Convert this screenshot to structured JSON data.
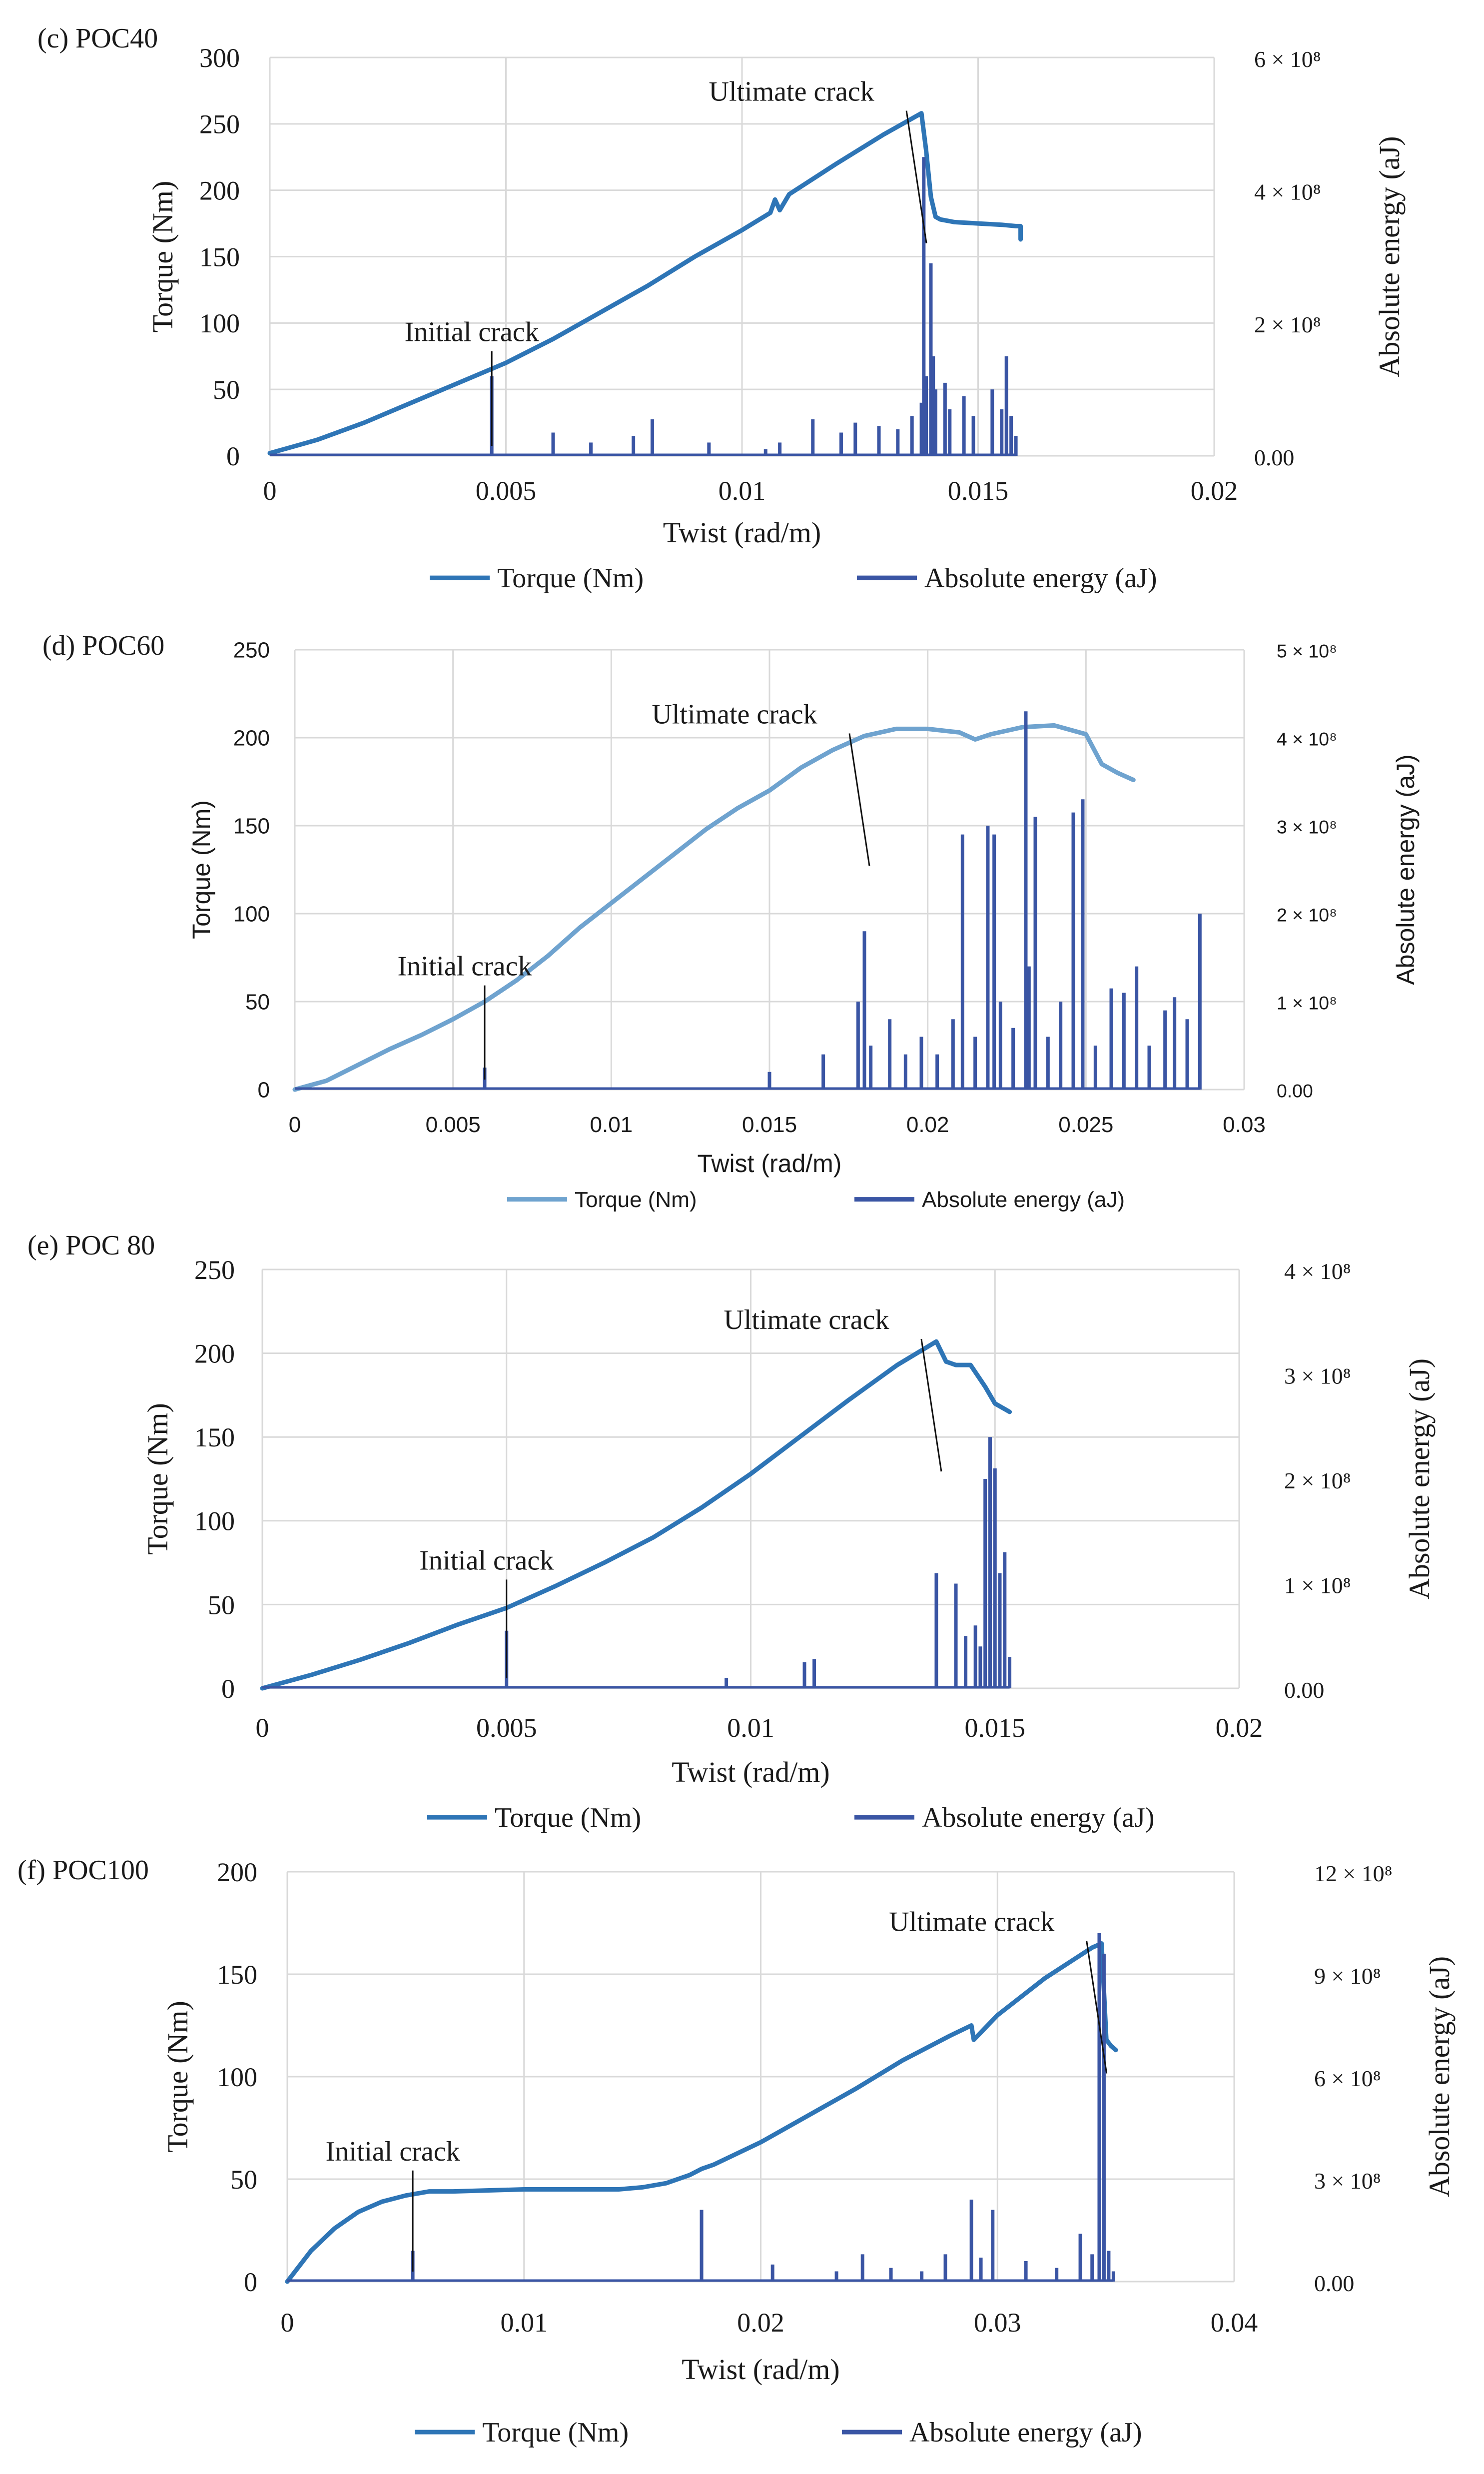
{
  "colors": {
    "torque_c": "#2E75B6",
    "torque_d": "#6FA3CF",
    "torque_e": "#2E75B6",
    "torque_f": "#2E75B6",
    "energy": "#3A55A4",
    "grid": "#D9D9D9",
    "text": "#1a1a1a"
  },
  "chart_data": [
    {
      "id": "c",
      "type": "line",
      "panel_label": "(c) POC40",
      "xlabel": "Twist (rad/m)",
      "ylabel": "Torque (Nm)",
      "y2label": "Absolute energy (aJ)",
      "xlim": [
        0,
        0.02
      ],
      "ylim": [
        0,
        300
      ],
      "y2lim": [
        0,
        600000000.0
      ],
      "x_ticks": [
        0,
        0.005,
        0.01,
        0.015,
        0.02
      ],
      "x_tick_labels": [
        "0",
        "0.005",
        "0.01",
        "0.015",
        "0.02"
      ],
      "y_ticks": [
        0,
        50,
        100,
        150,
        200,
        250,
        300
      ],
      "y_tick_labels": [
        "0",
        "50",
        "100",
        "150",
        "200",
        "250",
        "300"
      ],
      "y2_ticks": [
        0,
        200000000.0,
        400000000.0,
        600000000.0
      ],
      "y2_tick_labels": [
        "0.00",
        "2 × 10⁸",
        "4 × 10⁸",
        "6 × 10⁸"
      ],
      "series": [
        {
          "name": "Torque (Nm)",
          "kind": "line",
          "color_key": "torque_c",
          "x": [
            0,
            0.0005,
            0.001,
            0.002,
            0.003,
            0.004,
            0.005,
            0.006,
            0.007,
            0.008,
            0.009,
            0.01,
            0.0106,
            0.0107,
            0.0108,
            0.011,
            0.012,
            0.013,
            0.0138,
            0.0139,
            0.014,
            0.0141,
            0.0142,
            0.0145,
            0.015,
            0.0155,
            0.0158,
            0.0159,
            0.0159
          ],
          "y": [
            2,
            7,
            12,
            25,
            40,
            55,
            70,
            88,
            108,
            128,
            150,
            170,
            183,
            193,
            185,
            197,
            220,
            242,
            258,
            230,
            195,
            180,
            178,
            176,
            175,
            174,
            173,
            173,
            163
          ]
        },
        {
          "name": "Absolute energy (aJ)",
          "kind": "spikes",
          "color_key": "energy",
          "axis": "y2",
          "x": [
            0.0047,
            0.006,
            0.0068,
            0.0077,
            0.0081,
            0.0093,
            0.0105,
            0.0108,
            0.0115,
            0.0121,
            0.0124,
            0.0129,
            0.0133,
            0.0136,
            0.0138,
            0.01385,
            0.0139,
            0.014,
            0.01405,
            0.0141,
            0.0143,
            0.0144,
            0.0147,
            0.0149,
            0.0153,
            0.0155,
            0.0156,
            0.0157,
            0.0158
          ],
          "y": [
            120000000.0,
            35000000.0,
            20000000.0,
            30000000.0,
            55000000.0,
            20000000.0,
            10000000.0,
            20000000.0,
            55000000.0,
            35000000.0,
            50000000.0,
            45000000.0,
            40000000.0,
            60000000.0,
            80000000.0,
            450000000.0,
            120000000.0,
            290000000.0,
            150000000.0,
            100000000.0,
            110000000.0,
            70000000.0,
            90000000.0,
            60000000.0,
            100000000.0,
            70000000.0,
            150000000.0,
            60000000.0,
            30000000.0
          ]
        }
      ],
      "annotations": [
        {
          "text": "Initial crack",
          "x": 0.0047,
          "y": 60
        },
        {
          "text": "Ultimate crack",
          "x": 0.0138,
          "y": 258
        }
      ]
    },
    {
      "id": "d",
      "type": "line",
      "panel_label": "(d) POC60",
      "xlabel": "Twist (rad/m)",
      "ylabel": "Torque (Nm)",
      "y2label": "Absolute energy (aJ)",
      "xlim": [
        0,
        0.03
      ],
      "ylim": [
        0,
        250
      ],
      "y2lim": [
        0,
        500000000.0
      ],
      "x_ticks": [
        0,
        0.005,
        0.01,
        0.015,
        0.02,
        0.025,
        0.03
      ],
      "x_tick_labels": [
        "0",
        "0.005",
        "0.01",
        "0.015",
        "0.02",
        "0.025",
        "0.03"
      ],
      "y_ticks": [
        0,
        50,
        100,
        150,
        200,
        250
      ],
      "y_tick_labels": [
        "0",
        "50",
        "100",
        "150",
        "200",
        "250"
      ],
      "y2_ticks": [
        0,
        100000000.0,
        200000000.0,
        300000000.0,
        400000000.0,
        500000000.0
      ],
      "y2_tick_labels": [
        "0.00",
        "1 × 10⁸",
        "2 × 10⁸",
        "3 × 10⁸",
        "4 × 10⁸",
        "5 × 10⁸"
      ],
      "series": [
        {
          "name": "Torque (Nm)",
          "kind": "line",
          "color_key": "torque_d",
          "x": [
            0,
            0.001,
            0.002,
            0.003,
            0.004,
            0.005,
            0.006,
            0.007,
            0.008,
            0.009,
            0.01,
            0.011,
            0.012,
            0.013,
            0.014,
            0.015,
            0.016,
            0.017,
            0.018,
            0.019,
            0.02,
            0.021,
            0.0215,
            0.022,
            0.023,
            0.024,
            0.025,
            0.0255,
            0.026,
            0.0265
          ],
          "y": [
            0,
            5,
            14,
            23,
            31,
            40,
            50,
            62,
            76,
            92,
            106,
            120,
            134,
            148,
            160,
            170,
            183,
            193,
            201,
            205,
            205,
            203,
            199,
            202,
            206,
            207,
            202,
            185,
            180,
            176
          ]
        },
        {
          "name": "Absolute energy (aJ)",
          "kind": "spikes",
          "color_key": "energy",
          "axis": "y2",
          "x": [
            0.006,
            0.015,
            0.0167,
            0.0178,
            0.018,
            0.0182,
            0.0188,
            0.0193,
            0.0198,
            0.0203,
            0.0208,
            0.0211,
            0.0215,
            0.0219,
            0.0221,
            0.0223,
            0.0227,
            0.0231,
            0.0232,
            0.0234,
            0.0238,
            0.0242,
            0.0246,
            0.0249,
            0.0253,
            0.0258,
            0.0262,
            0.0266,
            0.027,
            0.0275,
            0.0278,
            0.0282,
            0.0286
          ],
          "y": [
            25000000.0,
            20000000.0,
            40000000.0,
            100000000.0,
            180000000.0,
            50000000.0,
            80000000.0,
            40000000.0,
            60000000.0,
            40000000.0,
            80000000.0,
            290000000.0,
            60000000.0,
            300000000.0,
            290000000.0,
            100000000.0,
            70000000.0,
            430000000.0,
            140000000.0,
            310000000.0,
            60000000.0,
            100000000.0,
            315000000.0,
            330000000.0,
            50000000.0,
            115000000.0,
            110000000.0,
            140000000.0,
            50000000.0,
            90000000.0,
            105000000.0,
            80000000.0,
            200000000.0
          ]
        }
      ],
      "annotations": [
        {
          "text": "Initial crack",
          "x": 0.006,
          "y": 45
        },
        {
          "text": "Ultimate crack",
          "x": 0.018,
          "y": 201
        }
      ]
    },
    {
      "id": "e",
      "type": "line",
      "panel_label": "(e) POC 80",
      "xlabel": "Twist (rad/m)",
      "ylabel": "Torque (Nm)",
      "y2label": "Absolute energy (aJ)",
      "xlim": [
        0,
        0.02
      ],
      "ylim": [
        0,
        250
      ],
      "y2lim": [
        0,
        400000000.0
      ],
      "x_ticks": [
        0,
        0.005,
        0.01,
        0.015,
        0.02
      ],
      "x_tick_labels": [
        "0",
        "0.005",
        "0.01",
        "0.015",
        "0.02"
      ],
      "y_ticks": [
        0,
        50,
        100,
        150,
        200,
        250
      ],
      "y_tick_labels": [
        "0",
        "50",
        "100",
        "150",
        "200",
        "250"
      ],
      "y2_ticks": [
        0,
        100000000.0,
        200000000.0,
        300000000.0,
        400000000.0
      ],
      "y2_tick_labels": [
        "0.00",
        "1 × 10⁸",
        "2 × 10⁸",
        "3 × 10⁸",
        "4 × 10⁸"
      ],
      "series": [
        {
          "name": "Torque (Nm)",
          "kind": "line",
          "color_key": "torque_e",
          "x": [
            0,
            0.001,
            0.002,
            0.003,
            0.004,
            0.005,
            0.006,
            0.007,
            0.008,
            0.009,
            0.01,
            0.011,
            0.012,
            0.013,
            0.0138,
            0.014,
            0.0142,
            0.0145,
            0.0148,
            0.015,
            0.0153
          ],
          "y": [
            0,
            8,
            17,
            27,
            38,
            48,
            61,
            75,
            90,
            108,
            128,
            150,
            172,
            193,
            207,
            195,
            193,
            193,
            180,
            170,
            165
          ]
        },
        {
          "name": "Absolute energy (aJ)",
          "kind": "spikes",
          "color_key": "energy",
          "axis": "y2",
          "x": [
            0.005,
            0.0095,
            0.0111,
            0.0113,
            0.0138,
            0.0142,
            0.0144,
            0.0146,
            0.0147,
            0.0148,
            0.0149,
            0.015,
            0.0151,
            0.0152,
            0.0153
          ],
          "y": [
            55000000.0,
            10000000.0,
            25000000.0,
            28000000.0,
            110000000.0,
            100000000.0,
            50000000.0,
            60000000.0,
            40000000.0,
            200000000.0,
            240000000.0,
            210000000.0,
            110000000.0,
            130000000.0,
            30000000.0
          ]
        }
      ],
      "annotations": [
        {
          "text": "Initial crack",
          "x": 0.005,
          "y": 50
        },
        {
          "text": "Ultimate crack",
          "x": 0.0138,
          "y": 207
        }
      ]
    },
    {
      "id": "f",
      "type": "line",
      "panel_label": "(f) POC100",
      "xlabel": "Twist (rad/m)",
      "ylabel": "Torque (Nm)",
      "y2label": "Absolute energy (aJ)",
      "xlim": [
        0,
        0.04
      ],
      "ylim": [
        0,
        200
      ],
      "y2lim": [
        0,
        1200000000.0
      ],
      "x_ticks": [
        0,
        0.01,
        0.02,
        0.03,
        0.04
      ],
      "x_tick_labels": [
        "0",
        "0.01",
        "0.02",
        "0.03",
        "0.04"
      ],
      "y_ticks": [
        0,
        50,
        100,
        150,
        200
      ],
      "y_tick_labels": [
        "0",
        "50",
        "100",
        "150",
        "200"
      ],
      "y2_ticks": [
        0,
        300000000.0,
        600000000.0,
        900000000.0,
        1200000000.0
      ],
      "y2_tick_labels": [
        "0.00",
        "3 × 10⁸",
        "6 × 10⁸",
        "9 × 10⁸",
        "12 × 10⁸"
      ],
      "series": [
        {
          "name": "Torque (Nm)",
          "kind": "line",
          "color_key": "torque_f",
          "x": [
            0,
            0.001,
            0.002,
            0.003,
            0.004,
            0.005,
            0.006,
            0.007,
            0.01,
            0.012,
            0.014,
            0.015,
            0.016,
            0.017,
            0.0175,
            0.018,
            0.02,
            0.022,
            0.024,
            0.026,
            0.028,
            0.0289,
            0.029,
            0.03,
            0.032,
            0.034,
            0.0344,
            0.0346,
            0.0348,
            0.035
          ],
          "y": [
            0,
            15,
            26,
            34,
            39,
            42,
            44,
            44,
            45,
            45,
            45,
            46,
            48,
            52,
            55,
            57,
            68,
            81,
            94,
            108,
            120,
            125,
            118,
            130,
            148,
            163,
            165,
            118,
            115,
            113
          ]
        },
        {
          "name": "Absolute energy (aJ)",
          "kind": "spikes",
          "color_key": "energy",
          "axis": "y2",
          "x": [
            0.0053,
            0.0175,
            0.0205,
            0.0232,
            0.0243,
            0.0255,
            0.0268,
            0.0278,
            0.0289,
            0.0293,
            0.0298,
            0.0312,
            0.0325,
            0.0335,
            0.034,
            0.0343,
            0.0345,
            0.0347,
            0.0349
          ],
          "y": [
            90000000.0,
            210000000.0,
            50000000.0,
            30000000.0,
            80000000.0,
            40000000.0,
            30000000.0,
            80000000.0,
            240000000.0,
            70000000.0,
            210000000.0,
            60000000.0,
            40000000.0,
            140000000.0,
            80000000.0,
            1020000000.0,
            960000000.0,
            90000000.0,
            30000000.0
          ]
        }
      ],
      "annotations": [
        {
          "text": "Initial crack",
          "x": 0.0053,
          "y": 42
        },
        {
          "text": "Ultimate crack",
          "x": 0.0344,
          "y": 165
        }
      ]
    }
  ]
}
